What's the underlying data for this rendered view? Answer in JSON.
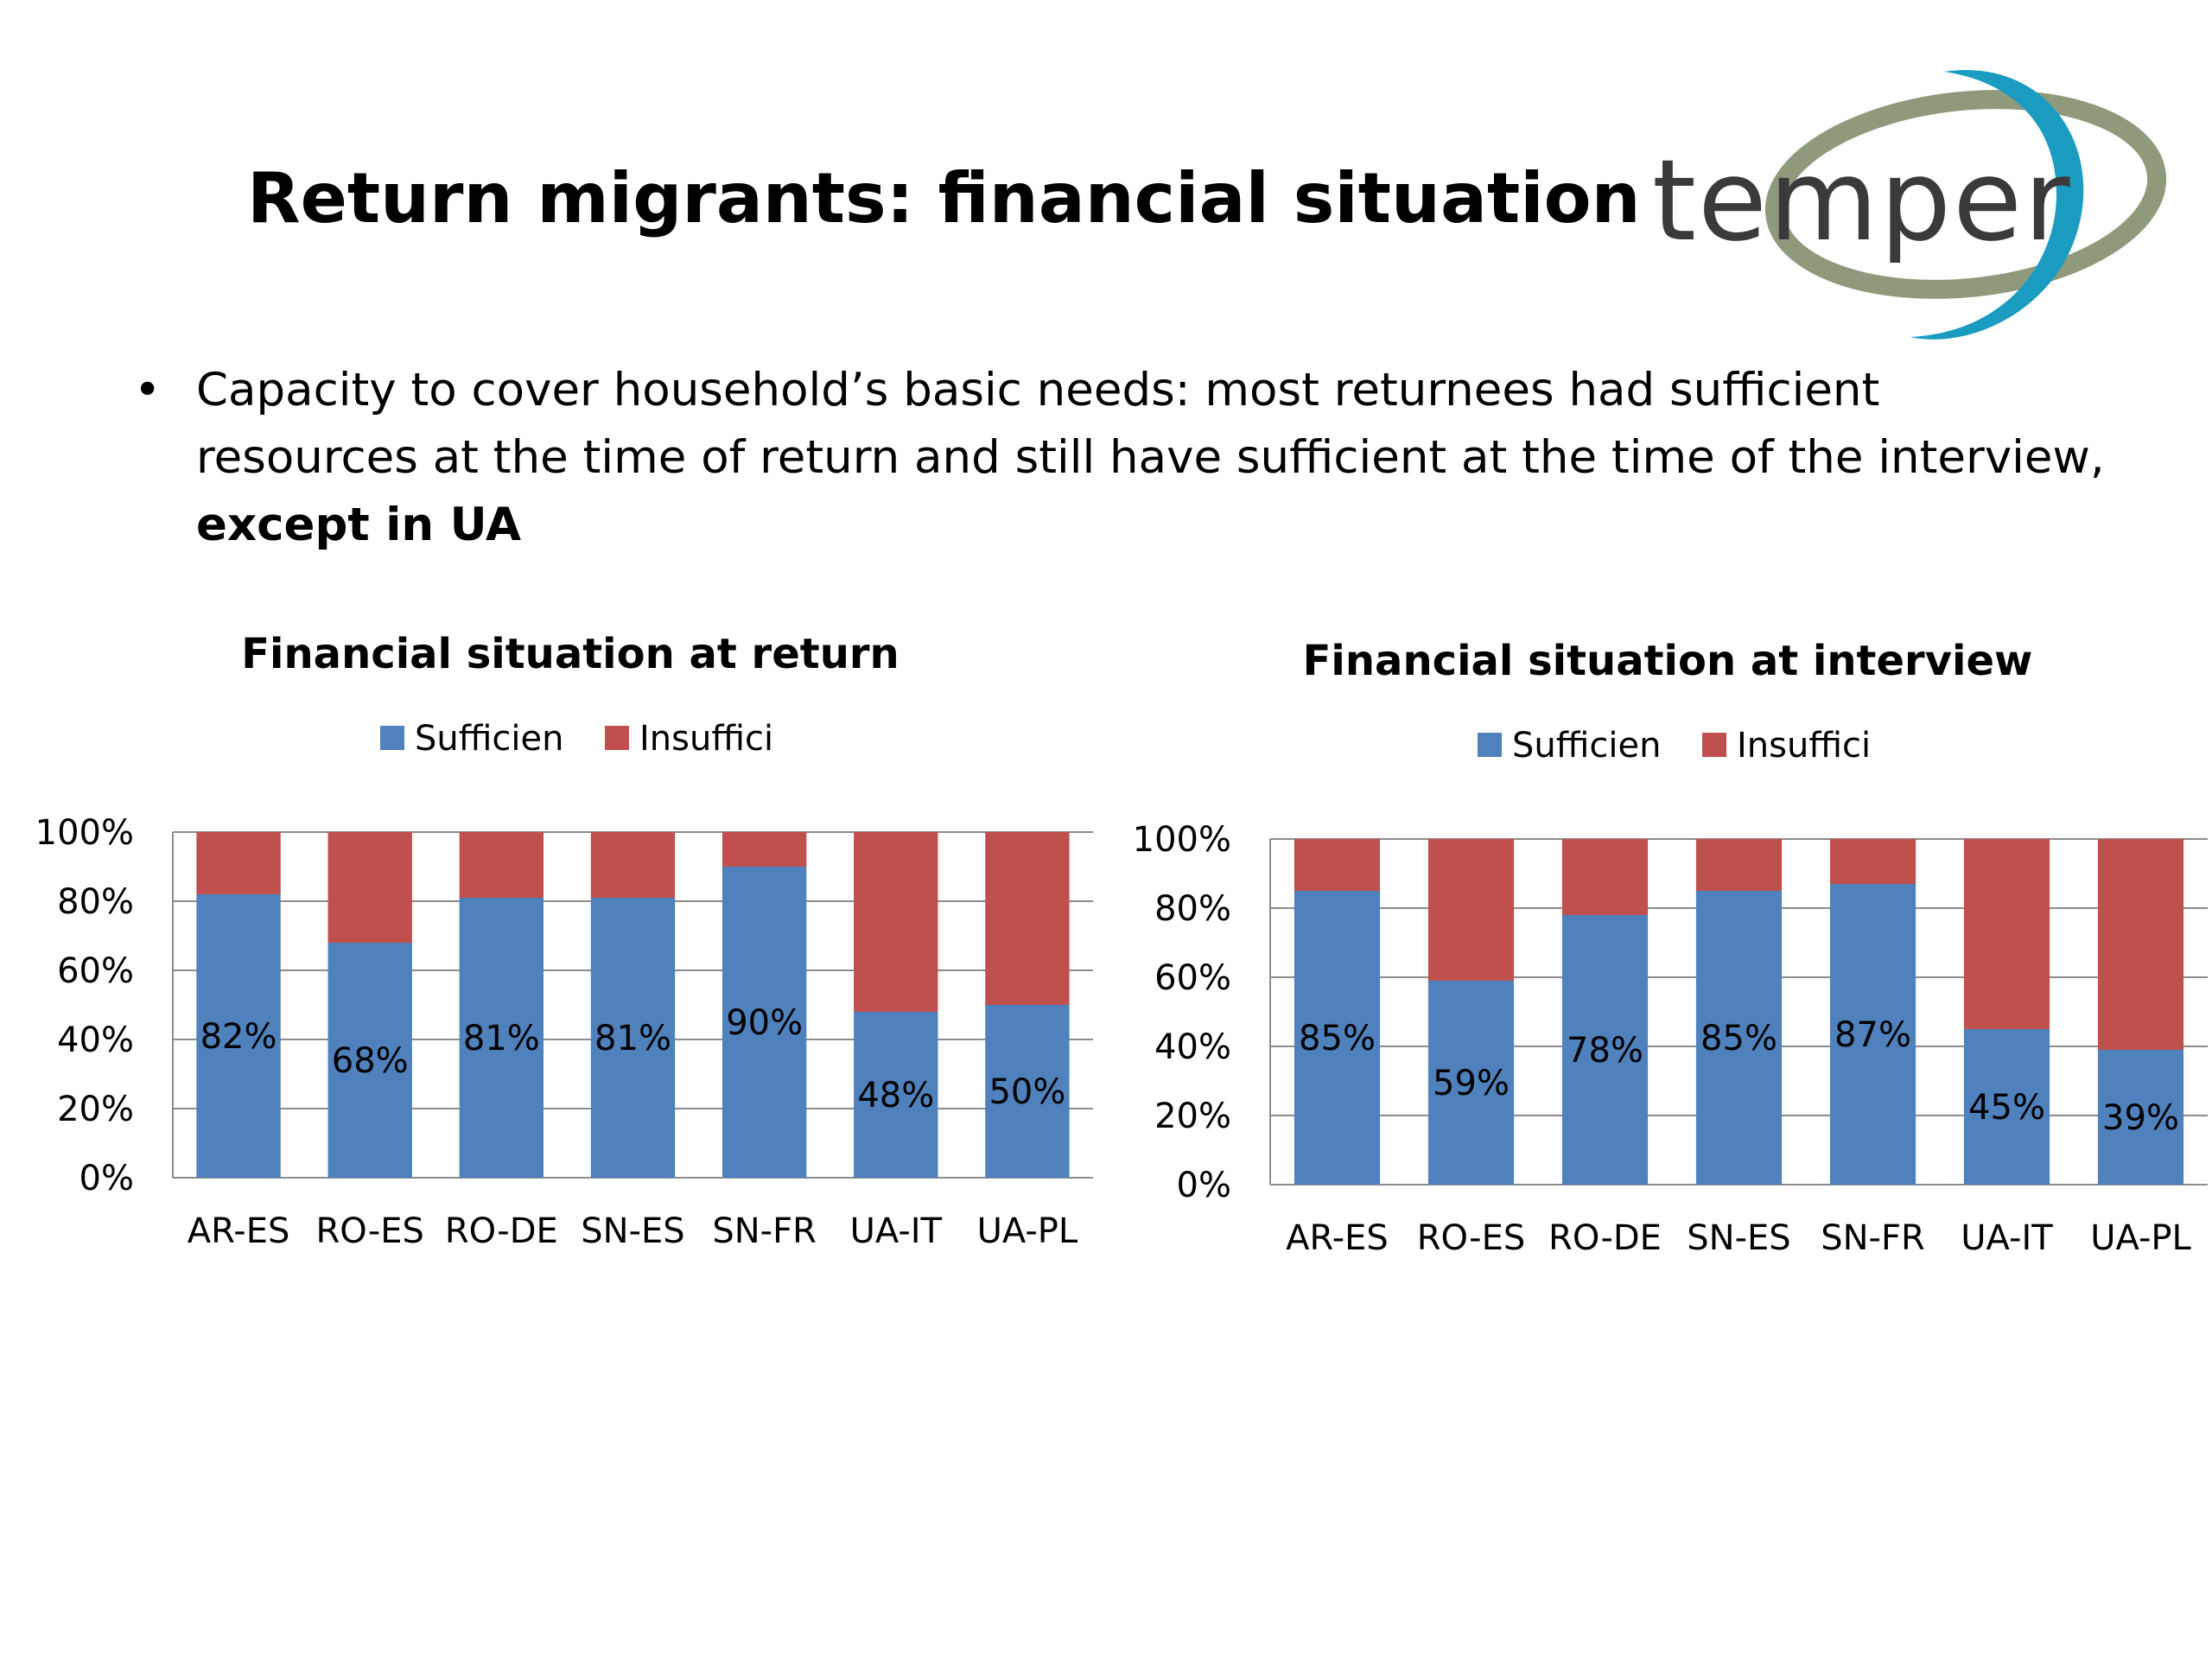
{
  "slide": {
    "title": "Return migrants: financial situation",
    "bullet": {
      "text": "Capacity to cover household’s basic needs: most returnees had sufficient resources at the time of return and still have sufficient at the time of the interview, ",
      "emphasis": "except in UA"
    },
    "logo": {
      "text": "temper",
      "colors": {
        "text": "#3a3a3a",
        "ring_teal": "#1a9cc0",
        "ring_olive": "#8f9a7c"
      }
    }
  },
  "chart_data": [
    {
      "type": "bar",
      "stacked": true,
      "title": "Financial situation at return",
      "categories": [
        "AR-ES",
        "RO-ES",
        "RO-DE",
        "SN-ES",
        "SN-FR",
        "UA-IT",
        "UA-PL"
      ],
      "series": [
        {
          "name": "Sufficien",
          "color": "#4f81bd",
          "values": [
            82,
            68,
            81,
            81,
            90,
            48,
            50
          ]
        },
        {
          "name": "Insuffici",
          "color": "#c0504d",
          "values": [
            18,
            32,
            19,
            19,
            10,
            52,
            50
          ]
        }
      ],
      "data_labels": [
        "82%",
        "68%",
        "81%",
        "81%",
        "90%",
        "48%",
        "50%"
      ],
      "ylim": [
        0,
        100
      ],
      "yticks": [
        "0%",
        "20%",
        "40%",
        "60%",
        "80%",
        "100%"
      ],
      "grid": true,
      "legend": "top"
    },
    {
      "type": "bar",
      "stacked": true,
      "title": "Financial situation at interview",
      "categories": [
        "AR-ES",
        "RO-ES",
        "RO-DE",
        "SN-ES",
        "SN-FR",
        "UA-IT",
        "UA-PL"
      ],
      "series": [
        {
          "name": "Sufficien",
          "color": "#4f81bd",
          "values": [
            85,
            59,
            78,
            85,
            87,
            45,
            39
          ]
        },
        {
          "name": "Insuffici",
          "color": "#c0504d",
          "values": [
            15,
            41,
            22,
            15,
            13,
            55,
            61
          ]
        }
      ],
      "data_labels": [
        "85%",
        "59%",
        "78%",
        "85%",
        "87%",
        "45%",
        "39%"
      ],
      "ylim": [
        0,
        100
      ],
      "yticks": [
        "0%",
        "20%",
        "40%",
        "60%",
        "80%",
        "100%"
      ],
      "grid": true,
      "legend": "top"
    }
  ]
}
